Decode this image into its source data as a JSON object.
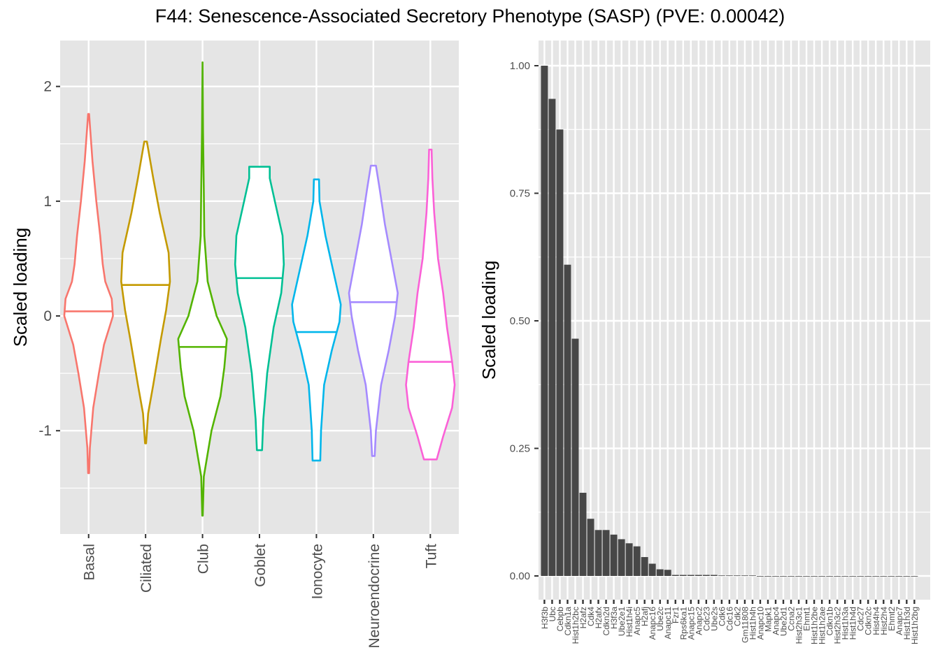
{
  "title": "F44: Senescence-Associated Secretory Phenotype (SASP) (PVE: 0.00042)",
  "colors": {
    "panel_background": "#e5e5e5",
    "grid": "#ffffff",
    "bar_fill": "#474747",
    "axis_text": "#4d4d4d"
  },
  "chart_data": [
    {
      "type": "violin",
      "ylabel": "Scaled loading",
      "xlabel": "",
      "ylim": [
        -1.9,
        2.4
      ],
      "yticks": [
        -1,
        0,
        1,
        2
      ],
      "ytick_labels": [
        "-1",
        "0",
        "1",
        "2"
      ],
      "grid": true,
      "series": [
        {
          "name": "Basal",
          "color": "#F8766D",
          "min": -1.37,
          "max": 1.76,
          "median": 0.04,
          "profile": [
            [
              -1.37,
              0.02
            ],
            [
              -1.15,
              0.05
            ],
            [
              -0.8,
              0.18
            ],
            [
              -0.5,
              0.4
            ],
            [
              -0.25,
              0.6
            ],
            [
              0.0,
              0.95
            ],
            [
              0.15,
              0.9
            ],
            [
              0.3,
              0.65
            ],
            [
              0.45,
              0.55
            ],
            [
              0.7,
              0.45
            ],
            [
              1.0,
              0.3
            ],
            [
              1.35,
              0.15
            ],
            [
              1.76,
              0.02
            ]
          ]
        },
        {
          "name": "Ciliated",
          "color": "#C49A00",
          "min": -1.11,
          "max": 1.52,
          "median": 0.27,
          "profile": [
            [
              -1.11,
              0.02
            ],
            [
              -0.85,
              0.1
            ],
            [
              -0.6,
              0.3
            ],
            [
              -0.2,
              0.6
            ],
            [
              0.05,
              0.8
            ],
            [
              0.3,
              0.95
            ],
            [
              0.55,
              0.9
            ],
            [
              0.9,
              0.55
            ],
            [
              1.2,
              0.3
            ],
            [
              1.52,
              0.05
            ]
          ]
        },
        {
          "name": "Club",
          "color": "#53B400",
          "min": -1.74,
          "max": 2.21,
          "median": -0.27,
          "profile": [
            [
              -1.74,
              0.01
            ],
            [
              -1.4,
              0.05
            ],
            [
              -1.0,
              0.35
            ],
            [
              -0.7,
              0.7
            ],
            [
              -0.45,
              0.85
            ],
            [
              -0.2,
              0.95
            ],
            [
              0.0,
              0.55
            ],
            [
              0.3,
              0.2
            ],
            [
              0.7,
              0.07
            ],
            [
              1.1,
              0.05
            ],
            [
              1.6,
              0.02
            ],
            [
              2.21,
              0.0
            ]
          ]
        },
        {
          "name": "Goblet",
          "color": "#00C094",
          "min": -1.17,
          "max": 1.3,
          "median": 0.33,
          "profile": [
            [
              -1.17,
              0.1
            ],
            [
              -0.9,
              0.15
            ],
            [
              -0.5,
              0.3
            ],
            [
              -0.1,
              0.55
            ],
            [
              0.2,
              0.85
            ],
            [
              0.45,
              0.95
            ],
            [
              0.7,
              0.9
            ],
            [
              0.95,
              0.65
            ],
            [
              1.2,
              0.4
            ],
            [
              1.3,
              0.4
            ]
          ]
        },
        {
          "name": "Ionocyte",
          "color": "#00B6EB",
          "min": -1.26,
          "max": 1.19,
          "median": -0.14,
          "profile": [
            [
              -1.26,
              0.15
            ],
            [
              -1.0,
              0.18
            ],
            [
              -0.6,
              0.3
            ],
            [
              -0.3,
              0.6
            ],
            [
              -0.05,
              0.9
            ],
            [
              0.1,
              0.95
            ],
            [
              0.4,
              0.65
            ],
            [
              0.7,
              0.35
            ],
            [
              1.0,
              0.12
            ],
            [
              1.19,
              0.1
            ]
          ]
        },
        {
          "name": "Neuroendocrine",
          "color": "#A58AFF",
          "min": -1.22,
          "max": 1.31,
          "median": 0.12,
          "profile": [
            [
              -1.22,
              0.05
            ],
            [
              -1.0,
              0.1
            ],
            [
              -0.6,
              0.3
            ],
            [
              -0.3,
              0.6
            ],
            [
              0.0,
              0.85
            ],
            [
              0.2,
              0.95
            ],
            [
              0.5,
              0.7
            ],
            [
              0.8,
              0.45
            ],
            [
              1.1,
              0.25
            ],
            [
              1.31,
              0.1
            ]
          ]
        },
        {
          "name": "Tuft",
          "color": "#FB61D7",
          "min": -1.25,
          "max": 1.45,
          "median": -0.4,
          "profile": [
            [
              -1.25,
              0.25
            ],
            [
              -1.05,
              0.5
            ],
            [
              -0.8,
              0.85
            ],
            [
              -0.6,
              0.95
            ],
            [
              -0.4,
              0.85
            ],
            [
              -0.1,
              0.65
            ],
            [
              0.2,
              0.5
            ],
            [
              0.5,
              0.3
            ],
            [
              0.9,
              0.15
            ],
            [
              1.2,
              0.08
            ],
            [
              1.45,
              0.05
            ]
          ]
        }
      ]
    },
    {
      "type": "bar",
      "ylabel": "Scaled loading",
      "xlabel": "",
      "ylim": [
        0,
        1.0
      ],
      "yticks": [
        0,
        0.25,
        0.5,
        0.75,
        1.0
      ],
      "ytick_labels": [
        "0.00",
        "0.25",
        "0.50",
        "0.75",
        "1.00"
      ],
      "grid": true,
      "categories": [
        "H3f3b",
        "Ubc",
        "Cebpb",
        "Cdkn1a",
        "Hist1h2bc",
        "H2afz",
        "Cdk4",
        "H2afx",
        "Cdkn2d",
        "H3f3a",
        "Ube2e1",
        "Hist1h4i",
        "Anapc5",
        "H2afj",
        "Anapc16",
        "Ube2c",
        "Anapc11",
        "Fzr1",
        "Rps6ka1",
        "Anapc15",
        "Anapc2",
        "Cdc23",
        "Ube2s",
        "Cdk6",
        "Cdc16",
        "Cdk2",
        "Gm11808",
        "Hist1h4h",
        "Anapc10",
        "Mapk1",
        "Anapc4",
        "Ube2d1",
        "Ccna2",
        "Hist2h3c1",
        "Ehmt1",
        "Hist1h2be",
        "Hist1h2ae",
        "Cdkn1b",
        "Hist2h3c2",
        "Hist1h3a",
        "Hist1h4d",
        "Cdc27",
        "Cdkn2c",
        "Hist4h4",
        "Hist2h4",
        "Ehmt2",
        "Anapc7",
        "Hist1h3d",
        "Hist1h2bg"
      ],
      "values": [
        1.0,
        0.935,
        0.875,
        0.61,
        0.465,
        0.163,
        0.112,
        0.09,
        0.09,
        0.081,
        0.072,
        0.064,
        0.058,
        0.037,
        0.024,
        0.013,
        0.012,
        0.002,
        0.002,
        0.002,
        0.002,
        0.002,
        0.002,
        0.001,
        0.001,
        0.001,
        0.001,
        0.001,
        0.0,
        0.0,
        0.0,
        0.0,
        0.0,
        0.0,
        0.0,
        0.0,
        0.0,
        0.0,
        0.0,
        0.0,
        0.0,
        0.0,
        0.0,
        0.0,
        0.0,
        0.0,
        0.0,
        0.0,
        0.0
      ]
    }
  ]
}
